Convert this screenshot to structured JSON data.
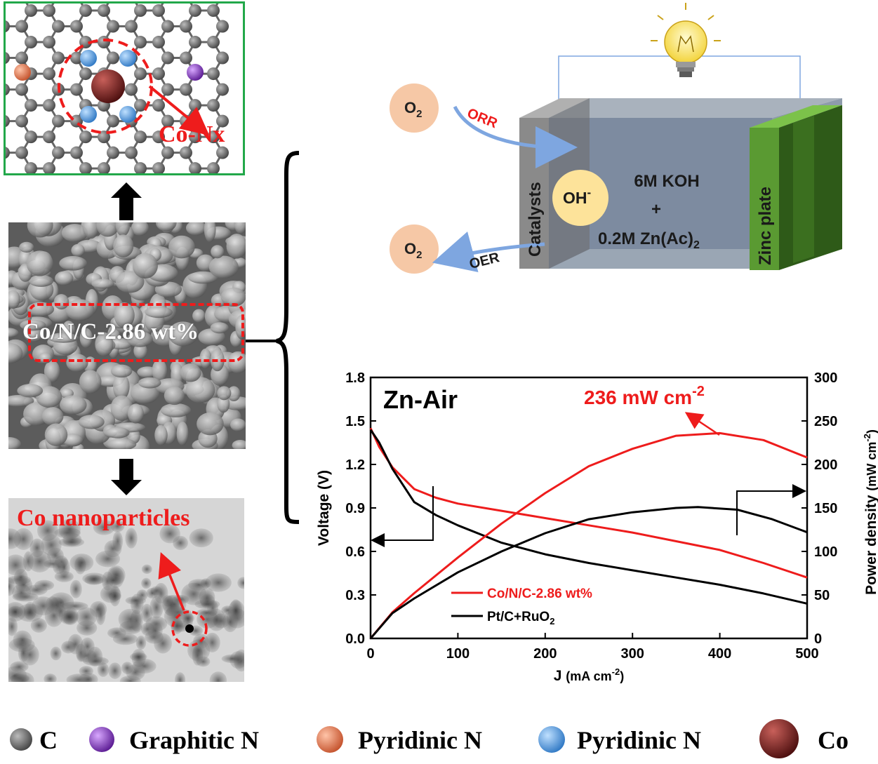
{
  "structure_panel": {
    "label": "Co-Nx",
    "border_color": "#22a84a"
  },
  "sem_panel": {
    "label": "Co/N/C-2.86 wt%"
  },
  "tem_panel": {
    "label": "Co nanoparticles"
  },
  "battery": {
    "o2_top": "O",
    "o2_top_sub": "2",
    "o2_bottom": "O",
    "o2_bottom_sub": "2",
    "orr": "ORR",
    "oer": "OER",
    "catalysts": "Catalysts",
    "oh": "OH",
    "oh_sup": "-",
    "electrolyte_line1": "6M KOH",
    "electrolyte_plus": "+",
    "electrolyte_line2": "0.2M Zn(Ac)",
    "electrolyte_line2_sub": "2",
    "zinc": "Zinc plate"
  },
  "chart_data": {
    "type": "line",
    "inner_title": "Zn-Air",
    "xlabel": "J",
    "xlabel_units": "(mA cm",
    "xlabel_units_exp": "-2",
    "xlabel_units_close": ")",
    "ylabel": "Voltage (V)",
    "y2label": "Power density",
    "y2label_units": "(mW cm",
    "y2label_units_exp": "-2",
    "y2label_units_close": ")",
    "xlim": [
      0,
      500
    ],
    "ylim": [
      0,
      1.8
    ],
    "y2lim": [
      0,
      300
    ],
    "xticks": [
      "0",
      "100",
      "200",
      "300",
      "400",
      "500"
    ],
    "yticks": [
      "0.0",
      "0.3",
      "0.6",
      "0.9",
      "1.2",
      "1.5",
      "1.8"
    ],
    "y2ticks": [
      "0",
      "50",
      "100",
      "150",
      "200",
      "250",
      "300"
    ],
    "annotation": "236 mW cm",
    "annotation_exp": "-2",
    "legend": [
      {
        "label": "Co/N/C-2.86 wt%",
        "color": "#ee1c1c"
      },
      {
        "label": "Pt/C+RuO",
        "label_sub": "2",
        "color": "#000000"
      }
    ],
    "series": [
      {
        "name": "Co/N/C-2.86 wt%",
        "kind": "voltage",
        "axis": "left",
        "color": "#ee1c1c",
        "x": [
          0,
          10,
          25,
          50,
          75,
          100,
          150,
          200,
          250,
          300,
          350,
          400,
          450,
          500
        ],
        "y": [
          1.45,
          1.32,
          1.18,
          1.03,
          0.97,
          0.93,
          0.88,
          0.83,
          0.78,
          0.73,
          0.67,
          0.61,
          0.52,
          0.42
        ]
      },
      {
        "name": "Pt/C+RuO2",
        "kind": "voltage",
        "axis": "left",
        "color": "#000000",
        "x": [
          0,
          10,
          25,
          50,
          75,
          100,
          150,
          200,
          250,
          300,
          350,
          400,
          450,
          500
        ],
        "y": [
          1.44,
          1.35,
          1.17,
          0.94,
          0.85,
          0.78,
          0.66,
          0.58,
          0.52,
          0.47,
          0.42,
          0.37,
          0.31,
          0.24
        ]
      },
      {
        "name": "Co/N/C-2.86 wt%",
        "kind": "power",
        "axis": "right",
        "color": "#ee1c1c",
        "x": [
          0,
          25,
          50,
          100,
          150,
          200,
          250,
          300,
          350,
          400,
          450,
          500
        ],
        "y": [
          0,
          30,
          52,
          93,
          132,
          167,
          198,
          218,
          233,
          236,
          228,
          208
        ]
      },
      {
        "name": "Pt/C+RuO2",
        "kind": "power",
        "axis": "right",
        "color": "#000000",
        "x": [
          0,
          25,
          50,
          100,
          150,
          200,
          250,
          300,
          350,
          375,
          420,
          460,
          500
        ],
        "y": [
          0,
          29,
          46,
          76,
          100,
          121,
          137,
          145,
          150,
          151,
          148,
          137,
          122
        ]
      }
    ]
  },
  "legend_bottom": [
    {
      "label": "C",
      "color": "#555555"
    },
    {
      "label": "Graphitic N",
      "color": "#7b2fb0"
    },
    {
      "label": "Pyridinic N",
      "color": "#e0704a"
    },
    {
      "label": "Pyridinic N",
      "color": "#4a90d9"
    },
    {
      "label": "Co",
      "color": "#7a1f1f"
    }
  ]
}
